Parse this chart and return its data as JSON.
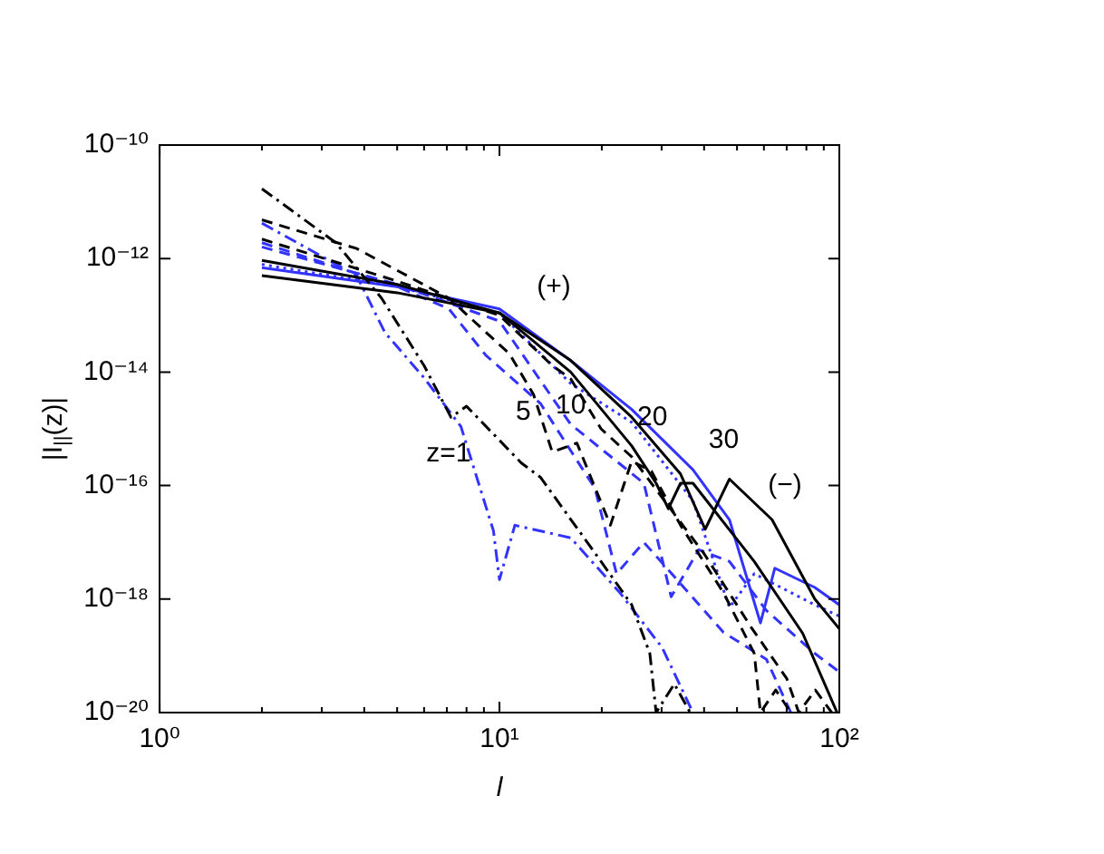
{
  "chart_data": {
    "type": "line",
    "xlabel": "l",
    "ylabel": "|I$_{||}$(z)|",
    "log": "xy",
    "grid": false,
    "legend": false,
    "marker": "none",
    "xlim": [
      1,
      100
    ],
    "ylim": [
      1e-20,
      1e-10
    ],
    "xticks": [
      {
        "value": 1,
        "label": "10⁰"
      },
      {
        "value": 2,
        "label": null
      },
      {
        "value": 3,
        "label": null
      },
      {
        "value": 4,
        "label": null
      },
      {
        "value": 5,
        "label": null
      },
      {
        "value": 6,
        "label": null
      },
      {
        "value": 7,
        "label": null
      },
      {
        "value": 8,
        "label": null
      },
      {
        "value": 9,
        "label": null
      },
      {
        "value": 10,
        "label": "10¹"
      },
      {
        "value": 20,
        "label": null
      },
      {
        "value": 30,
        "label": null
      },
      {
        "value": 40,
        "label": null
      },
      {
        "value": 50,
        "label": null
      },
      {
        "value": 60,
        "label": null
      },
      {
        "value": 70,
        "label": null
      },
      {
        "value": 80,
        "label": null
      },
      {
        "value": 90,
        "label": null
      },
      {
        "value": 100,
        "label": "10²"
      }
    ],
    "yticks": [
      {
        "value": 1e-20,
        "label": "10⁻²⁰"
      },
      {
        "value": 1e-18,
        "label": "10⁻¹⁸"
      },
      {
        "value": 1e-16,
        "label": "10⁻¹⁶"
      },
      {
        "value": 1e-14,
        "label": "10⁻¹⁴"
      },
      {
        "value": 1e-12,
        "label": "10⁻¹²"
      },
      {
        "value": 1e-10,
        "label": "10⁻¹⁰"
      }
    ],
    "series": [
      {
        "color": "#000000",
        "line_style": "dashdot",
        "x": [
          2,
          3.3,
          4.5,
          6,
          7.2,
          8,
          11.6,
          13.2,
          19.9,
          24.5,
          27.7,
          28.9,
          32.7,
          36.4
        ],
        "values": [
          1.7e-11,
          1.9e-12,
          2e-13,
          1.3e-14,
          1.6e-15,
          2.5e-15,
          2.5e-16,
          1.4e-16,
          4.6e-18,
          7.9e-19,
          1.1e-19,
          1e-20,
          3.2e-20,
          1e-20
        ]
      },
      {
        "color": "#000000",
        "line_style": "dashed",
        "x": [
          2,
          3.8,
          7.1,
          10.7,
          12.6,
          14.3,
          16.9,
          21.2,
          24.5,
          28,
          34.1,
          45.6,
          56.2,
          58.6,
          65,
          72
        ],
        "values": [
          4.8e-12,
          1.5e-12,
          2e-13,
          2.1e-14,
          4e-15,
          3.9e-16,
          5.6e-16,
          2e-17,
          2.7e-16,
          1.8e-16,
          2e-17,
          1.3e-18,
          1.1e-19,
          1e-20,
          2.5e-20,
          1e-20
        ]
      },
      {
        "color": "#000000",
        "line_style": "dashed",
        "x": [
          2,
          5,
          10,
          14.3,
          16.2,
          19.9,
          24.5,
          30,
          40,
          55,
          70,
          76,
          85,
          95
        ],
        "values": [
          2.2e-12,
          4e-13,
          1e-13,
          1.3e-14,
          7.6e-15,
          1e-15,
          3.2e-16,
          6.3e-17,
          6.3e-18,
          3.2e-19,
          4e-20,
          1e-20,
          2.5e-20,
          1e-20
        ]
      },
      {
        "color": "#000000",
        "line_style": "solid",
        "x": [
          2,
          5,
          10,
          16.2,
          24.5,
          28.9,
          31.4,
          34.1,
          37.1,
          56.2,
          78,
          98.5
        ],
        "values": [
          9.3e-13,
          3.5e-13,
          1.1e-13,
          1e-14,
          5e-16,
          1.1e-16,
          3.9e-17,
          1.1e-16,
          1.1e-16,
          4.6e-18,
          2.5e-19,
          1e-20
        ]
      },
      {
        "color": "#000000",
        "line_style": "solid",
        "x": [
          2,
          5,
          10,
          16.2,
          24.5,
          34.1,
          40.3,
          47.5,
          63.4,
          84.7,
          100
        ],
        "values": [
          5e-13,
          2.5e-13,
          1.1e-13,
          1.6e-14,
          1.6e-15,
          1.6e-16,
          1.7e-17,
          1.3e-16,
          2.5e-17,
          1e-18,
          3e-19
        ]
      },
      {
        "color": "#3333ff",
        "line_style": "dashdot",
        "x": [
          2,
          3.8,
          4.6,
          6,
          7.7,
          9.6,
          10,
          11.1,
          16.2,
          22.6,
          30.1,
          37.1
        ],
        "values": [
          4.2e-12,
          5e-13,
          5e-14,
          7.9e-15,
          1.1e-15,
          1.6e-17,
          2.2e-18,
          2e-17,
          1.2e-17,
          1.3e-18,
          1.4e-19,
          1e-20
        ]
      },
      {
        "color": "#3333ff",
        "line_style": "dashed",
        "x": [
          2,
          5,
          7.1,
          9.1,
          13.2,
          19.1,
          22.1,
          26.6,
          45.6,
          61,
          72
        ],
        "values": [
          1.9e-12,
          3.2e-13,
          1.3e-13,
          2e-14,
          2.8e-15,
          8.9e-17,
          2.8e-18,
          1e-17,
          2.6e-19,
          8.7e-20,
          1e-20
        ]
      },
      {
        "color": "#3333ff",
        "line_style": "dashed",
        "x": [
          2,
          5,
          10,
          16.2,
          26.6,
          32,
          38.6,
          47.5,
          61,
          84.7,
          100
        ],
        "values": [
          1.6e-12,
          3.5e-13,
          7.9e-14,
          1.2e-15,
          1.1e-16,
          1.1e-18,
          7.4e-18,
          4.6e-18,
          6.3e-19,
          1.1e-19,
          5.2e-20
        ]
      },
      {
        "color": "#3333ff",
        "line_style": "dotted",
        "x": [
          2,
          5,
          10,
          16.2,
          24.5,
          37.1,
          47.5,
          56.2,
          84.7,
          100
        ],
        "values": [
          7.9e-13,
          3.2e-13,
          1.1e-13,
          6.3e-15,
          1.3e-15,
          5.4e-17,
          7.1e-19,
          2.8e-18,
          7.9e-19,
          5e-19
        ]
      },
      {
        "color": "#3333ff",
        "line_style": "solid",
        "x": [
          2,
          5,
          10,
          16.2,
          24.5,
          37.1,
          47.5,
          58.6,
          64.6,
          84.7,
          100
        ],
        "values": [
          6.9e-13,
          3.2e-13,
          1.3e-13,
          1.6e-14,
          2.2e-15,
          1.9e-16,
          2.5e-17,
          3.8e-19,
          3.5e-18,
          1.6e-18,
          7.9e-19
        ]
      }
    ],
    "annotations": [
      "(+)",
      "(−)",
      "z=1",
      "5",
      "10",
      "20",
      "30"
    ]
  }
}
